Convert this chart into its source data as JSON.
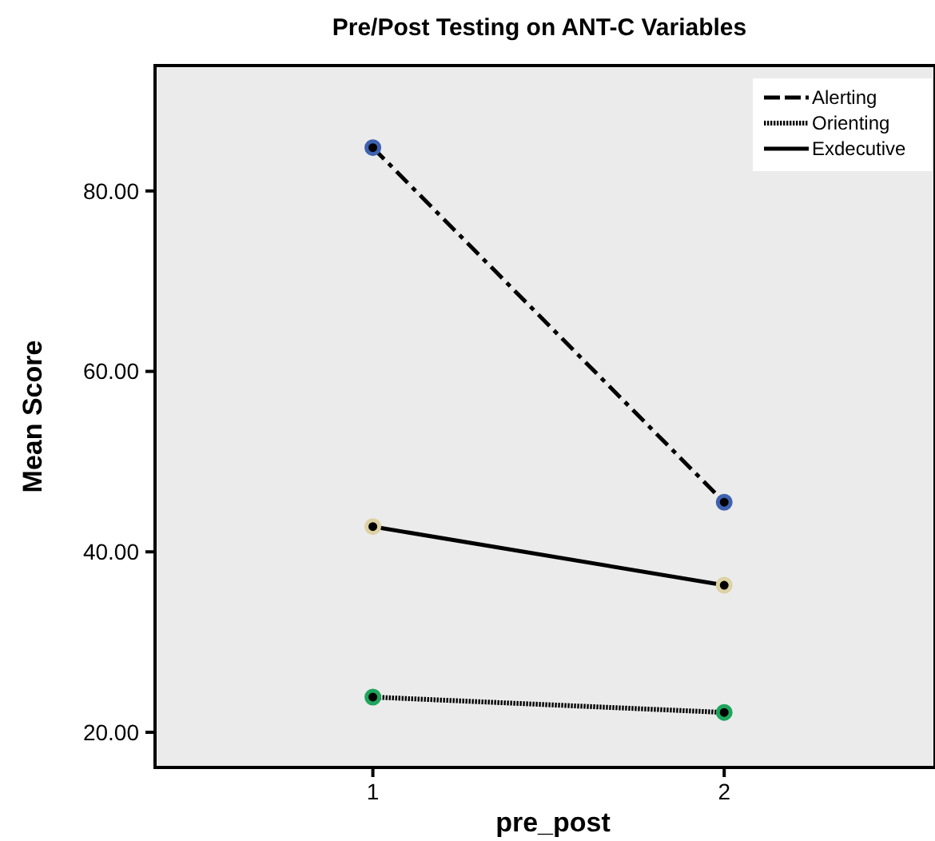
{
  "chart_data": {
    "type": "line",
    "title": "Pre/Post Testing on ANT-C Variables",
    "xlabel": "pre_post",
    "ylabel": "Mean Score",
    "x": [
      1,
      2
    ],
    "xlim": [
      0.38,
      2.6
    ],
    "xticks": [
      1,
      2
    ],
    "ylim": [
      16.1,
      93.9
    ],
    "yticks": [
      {
        "value": 20,
        "label": "20.00"
      },
      {
        "value": 40,
        "label": "40.00"
      },
      {
        "value": 60,
        "label": "60.00"
      },
      {
        "value": 80,
        "label": "80.00"
      }
    ],
    "grid": false,
    "legend": "top right",
    "marker": "circle",
    "series": [
      {
        "name": "Alerting",
        "color": "#000000",
        "colors": [
          "#3f62b0",
          "#3f62b0"
        ],
        "line_style": "dashed",
        "values": [
          84.8,
          45.5
        ]
      },
      {
        "name": "Orienting",
        "color": "#000000",
        "colors": [
          "#1ea55c",
          "#1ea55c"
        ],
        "line_style": "dotted",
        "values": [
          23.9,
          22.2
        ]
      },
      {
        "name": "Exdecutive",
        "color": "#000000",
        "colors": [
          "#ddd2a4",
          "#ddd2a4"
        ],
        "line_style": "solid",
        "values": [
          42.8,
          36.3
        ]
      }
    ]
  }
}
